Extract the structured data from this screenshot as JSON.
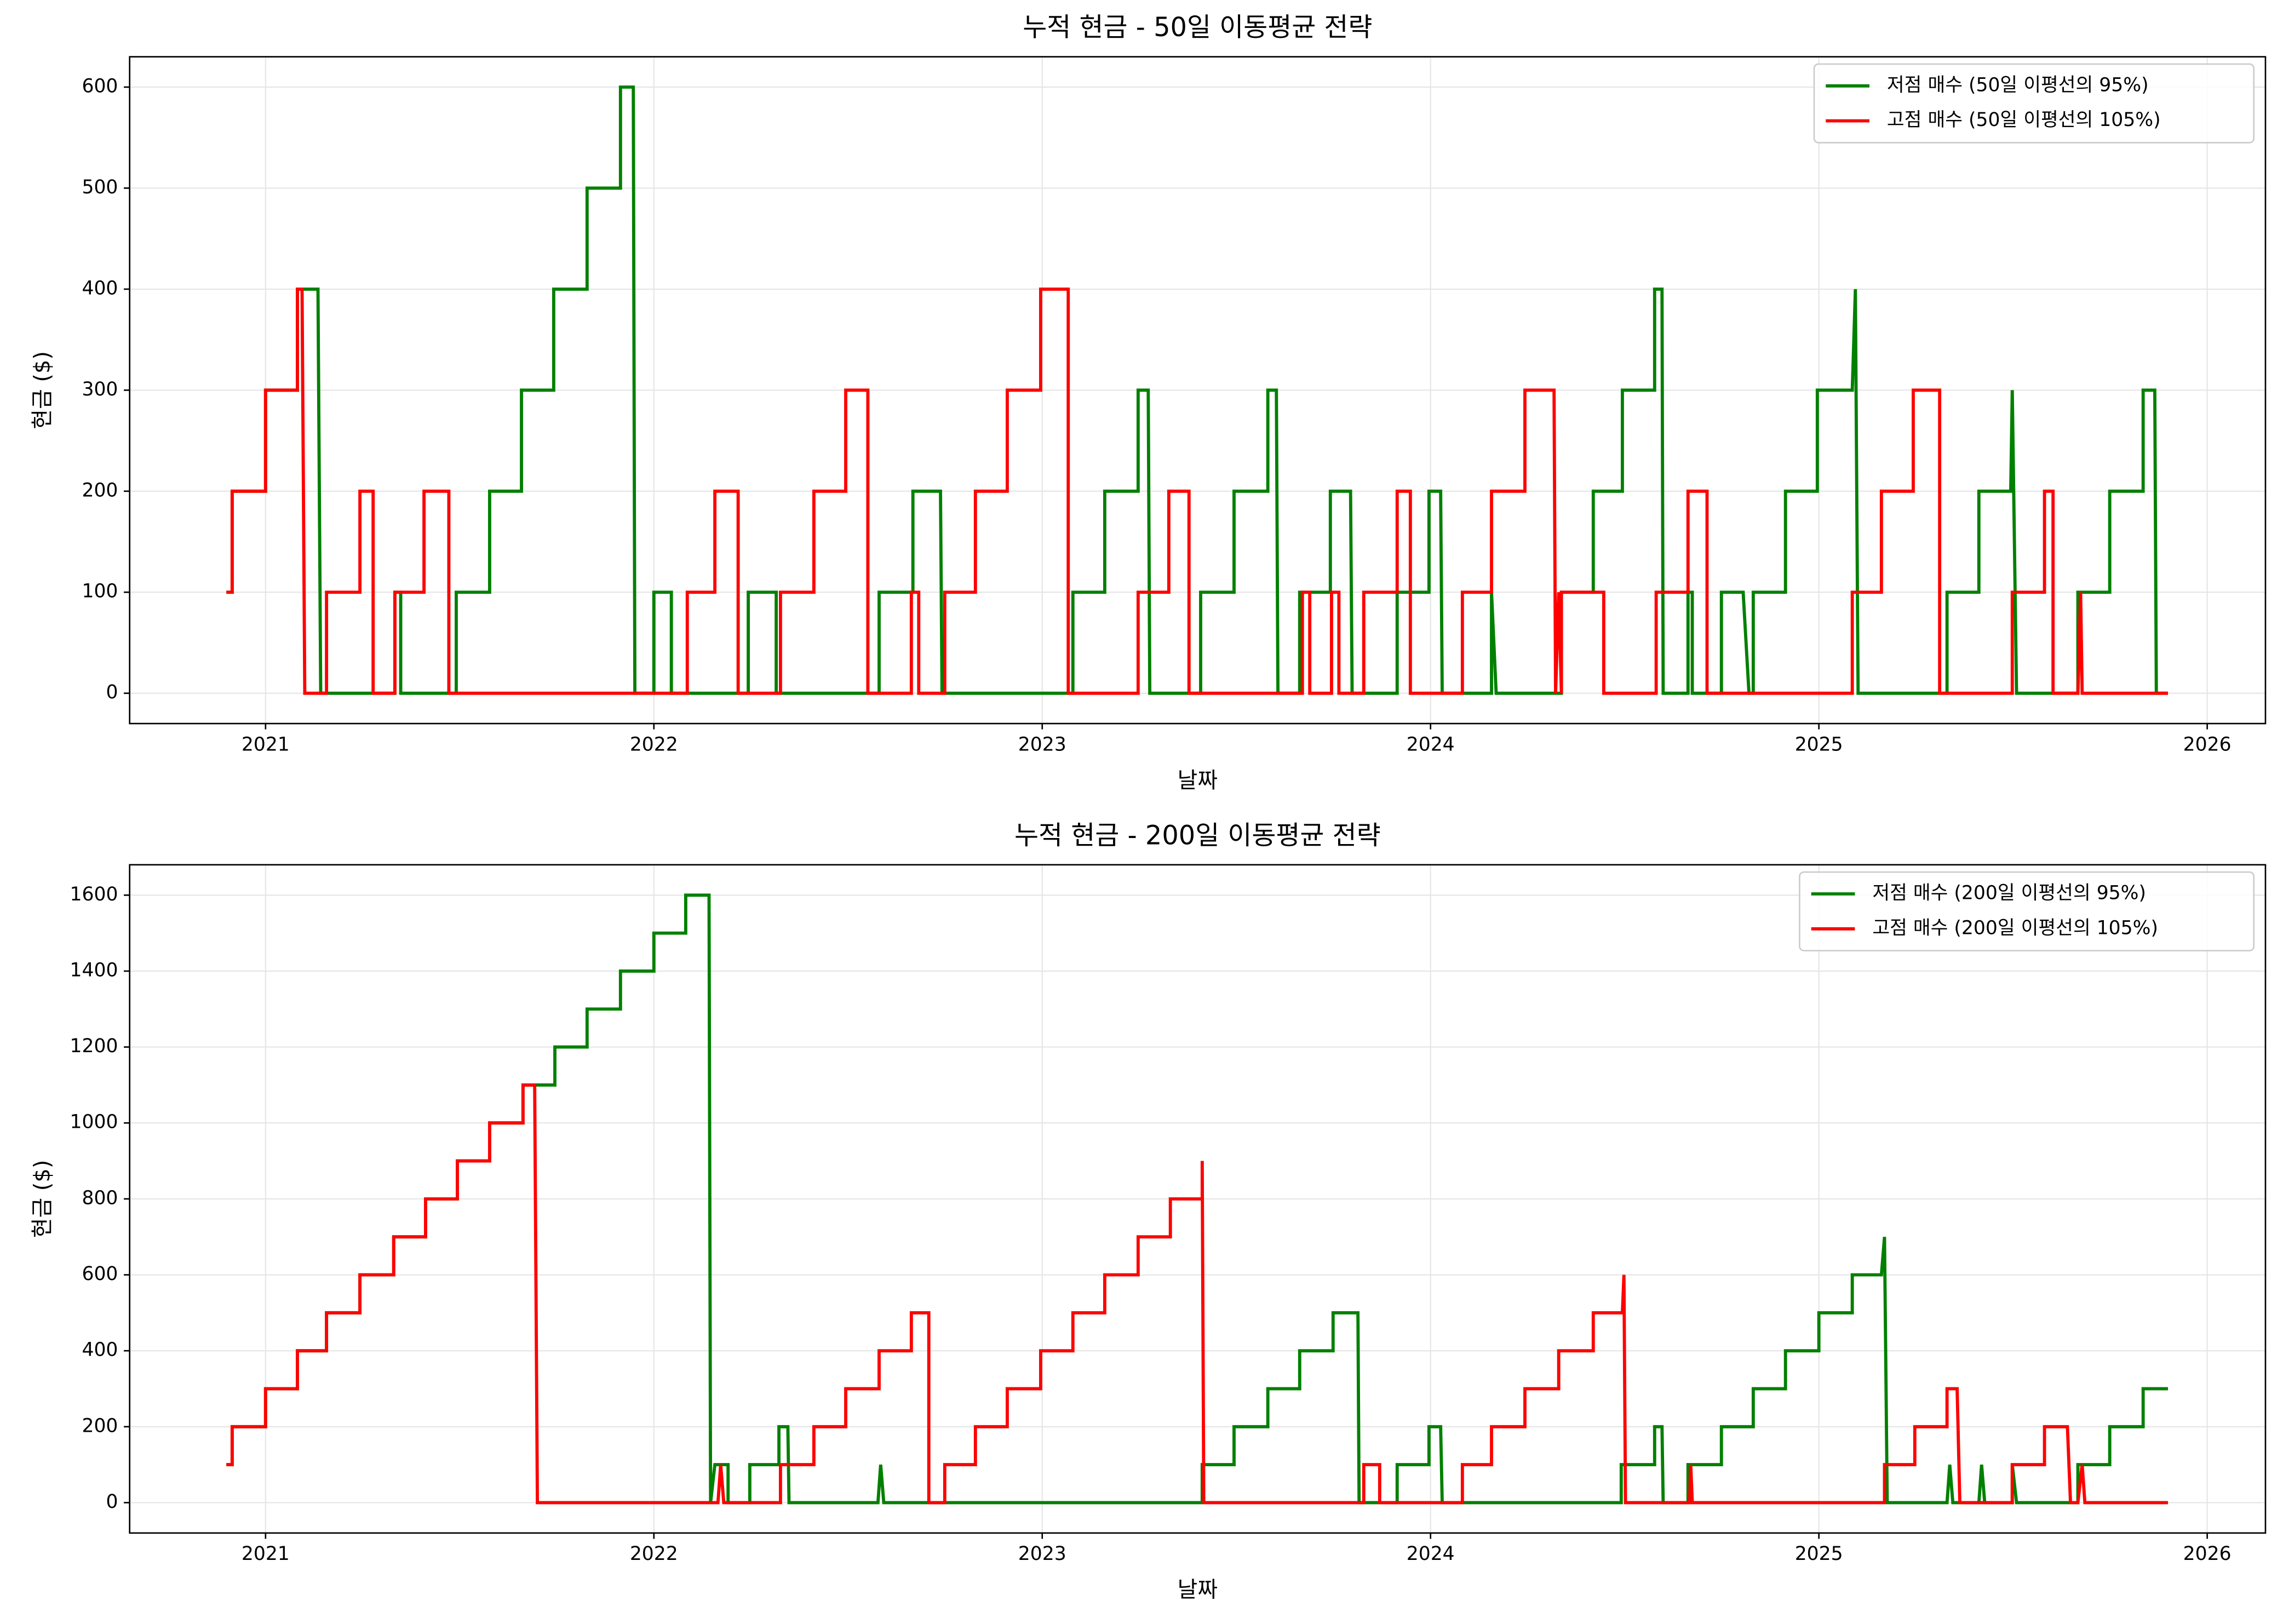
{
  "chart_data": [
    {
      "type": "line",
      "title": "누적 현금 - 50일 이동평균 전략",
      "x_label": "날짜",
      "y_label": "현금 ($)",
      "xlim": [
        2020.65,
        2026.15
      ],
      "ylim": [
        -30,
        630
      ],
      "xticks": [
        2021,
        2022,
        2023,
        2024,
        2025,
        2026
      ],
      "yticks": [
        0,
        100,
        200,
        300,
        400,
        500,
        600
      ],
      "grid": true,
      "legend": "upper right",
      "series": [
        {
          "name": "저점 매수 (50일 이평선의 95%)",
          "color": "#008000",
          "x": [
            2020.899,
            2020.914,
            2020.914,
            2021.0,
            2021.0,
            2021.082,
            2021.082,
            2021.135,
            2021.142,
            2021.333,
            2021.333,
            2021.348,
            2021.348,
            2021.491,
            2021.491,
            2021.577,
            2021.577,
            2021.659,
            2021.659,
            2021.742,
            2021.742,
            2021.828,
            2021.828,
            2021.914,
            2021.914,
            2021.947,
            2021.951,
            2022.0,
            2022.0,
            2022.045,
            2022.045,
            2022.243,
            2022.243,
            2022.315,
            2022.315,
            2022.58,
            2022.58,
            2022.667,
            2022.667,
            2022.738,
            2022.742,
            2023.079,
            2023.079,
            2023.161,
            2023.161,
            2023.247,
            2023.247,
            2023.273,
            2023.277,
            2023.408,
            2023.408,
            2023.494,
            2023.494,
            2023.581,
            2023.581,
            2023.603,
            2023.607,
            2023.663,
            2023.663,
            2023.742,
            2023.742,
            2023.794,
            2023.798,
            2023.914,
            2023.914,
            2023.996,
            2023.996,
            2024.026,
            2024.03,
            2024.157,
            2024.157,
            2024.169,
            2024.337,
            2024.337,
            2024.419,
            2024.419,
            2024.494,
            2024.494,
            2024.577,
            2024.577,
            2024.596,
            2024.599,
            2024.663,
            2024.663,
            2024.674,
            2024.674,
            2024.749,
            2024.749,
            2024.805,
            2024.82,
            2024.831,
            2024.831,
            2024.914,
            2024.914,
            2024.996,
            2024.996,
            2025.086,
            2025.094,
            2025.101,
            2025.33,
            2025.33,
            2025.412,
            2025.412,
            2025.494,
            2025.498,
            2025.509,
            2025.667,
            2025.667,
            2025.749,
            2025.749,
            2025.835,
            2025.835,
            2025.865,
            2025.869,
            2025.899
          ],
          "values": [
            100,
            100,
            200,
            200,
            300,
            300,
            400,
            400,
            0,
            0,
            100,
            100,
            0,
            0,
            100,
            100,
            200,
            200,
            300,
            300,
            400,
            400,
            500,
            500,
            600,
            600,
            0,
            0,
            100,
            100,
            0,
            0,
            100,
            100,
            0,
            0,
            100,
            100,
            200,
            200,
            0,
            0,
            100,
            100,
            200,
            200,
            300,
            300,
            0,
            0,
            100,
            100,
            200,
            200,
            300,
            300,
            0,
            0,
            100,
            100,
            200,
            200,
            0,
            0,
            100,
            100,
            200,
            200,
            0,
            0,
            100,
            0,
            0,
            100,
            100,
            200,
            200,
            300,
            300,
            400,
            400,
            0,
            0,
            100,
            100,
            0,
            0,
            100,
            100,
            0,
            0,
            100,
            100,
            200,
            200,
            300,
            300,
            400,
            0,
            0,
            100,
            100,
            200,
            200,
            300,
            0,
            0,
            100,
            100,
            200,
            200,
            300,
            300,
            0,
            0
          ]
        },
        {
          "name": "고점 매수 (50일 이평선의 105%)",
          "color": "#ff0000",
          "x": [
            2020.899,
            2020.914,
            2020.914,
            2021.0,
            2021.0,
            2021.082,
            2021.082,
            2021.094,
            2021.101,
            2021.157,
            2021.157,
            2021.243,
            2021.243,
            2021.277,
            2021.277,
            2021.333,
            2021.333,
            2021.408,
            2021.408,
            2021.472,
            2021.472,
            2022.086,
            2022.086,
            2022.157,
            2022.157,
            2022.217,
            2022.217,
            2022.326,
            2022.326,
            2022.412,
            2022.412,
            2022.494,
            2022.494,
            2022.551,
            2022.551,
            2022.663,
            2022.663,
            2022.682,
            2022.682,
            2022.749,
            2022.749,
            2022.828,
            2022.828,
            2022.91,
            2022.91,
            2022.996,
            2022.996,
            2023.067,
            2023.067,
            2023.247,
            2023.247,
            2023.326,
            2023.326,
            2023.378,
            2023.378,
            2023.67,
            2023.67,
            2023.689,
            2023.689,
            2023.745,
            2023.745,
            2023.764,
            2023.764,
            2023.828,
            2023.828,
            2023.914,
            2023.914,
            2023.948,
            2023.948,
            2024.082,
            2024.082,
            2024.157,
            2024.157,
            2024.243,
            2024.243,
            2024.318,
            2024.322,
            2024.33,
            2024.337,
            2024.337,
            2024.446,
            2024.446,
            2024.581,
            2024.581,
            2024.663,
            2024.663,
            2024.712,
            2024.712,
            2025.086,
            2025.086,
            2025.161,
            2025.161,
            2025.243,
            2025.243,
            2025.311,
            2025.311,
            2025.498,
            2025.498,
            2025.581,
            2025.581,
            2025.603,
            2025.603,
            2025.667,
            2025.674,
            2025.678,
            2025.899
          ],
          "values": [
            100,
            100,
            200,
            200,
            300,
            300,
            400,
            400,
            0,
            0,
            100,
            100,
            200,
            200,
            0,
            0,
            100,
            100,
            200,
            200,
            0,
            0,
            100,
            100,
            200,
            200,
            0,
            0,
            100,
            100,
            200,
            200,
            300,
            300,
            0,
            0,
            100,
            100,
            0,
            0,
            100,
            100,
            200,
            200,
            300,
            300,
            400,
            400,
            0,
            0,
            100,
            100,
            200,
            200,
            0,
            0,
            100,
            100,
            0,
            0,
            100,
            100,
            0,
            0,
            100,
            100,
            200,
            200,
            0,
            0,
            100,
            100,
            200,
            200,
            300,
            300,
            0,
            100,
            0,
            100,
            100,
            0,
            0,
            100,
            100,
            200,
            200,
            0,
            0,
            100,
            100,
            200,
            200,
            300,
            300,
            0,
            0,
            100,
            100,
            200,
            200,
            0,
            0,
            100,
            0,
            0
          ]
        }
      ]
    },
    {
      "type": "line",
      "title": "누적 현금 - 200일 이동평균 전략",
      "x_label": "날짜",
      "y_label": "현금 ($)",
      "xlim": [
        2020.65,
        2026.15
      ],
      "ylim": [
        -80,
        1680
      ],
      "xticks": [
        2021,
        2022,
        2023,
        2024,
        2025,
        2026
      ],
      "yticks": [
        0,
        200,
        400,
        600,
        800,
        1000,
        1200,
        1400,
        1600
      ],
      "grid": true,
      "legend": "upper right",
      "series": [
        {
          "name": "저점 매수 (200일 이평선의 95%)",
          "color": "#008000",
          "x": [
            2020.899,
            2020.914,
            2020.914,
            2021.0,
            2021.0,
            2021.082,
            2021.082,
            2021.157,
            2021.157,
            2021.243,
            2021.243,
            2021.33,
            2021.33,
            2021.412,
            2021.412,
            2021.494,
            2021.494,
            2021.577,
            2021.577,
            2021.663,
            2021.663,
            2021.745,
            2021.745,
            2021.828,
            2021.828,
            2021.914,
            2021.914,
            2022.0,
            2022.0,
            2022.082,
            2022.082,
            2022.142,
            2022.146,
            2022.157,
            2022.191,
            2022.191,
            2022.247,
            2022.247,
            2022.322,
            2022.322,
            2022.345,
            2022.348,
            2022.577,
            2022.584,
            2022.592,
            2023.412,
            2023.412,
            2023.494,
            2023.494,
            2023.581,
            2023.581,
            2023.663,
            2023.663,
            2023.749,
            2023.749,
            2023.813,
            2023.816,
            2023.914,
            2023.914,
            2023.996,
            2023.996,
            2024.026,
            2024.03,
            2024.491,
            2024.491,
            2024.577,
            2024.577,
            2024.596,
            2024.599,
            2024.663,
            2024.663,
            2024.749,
            2024.749,
            2024.831,
            2024.831,
            2024.914,
            2024.914,
            2025.0,
            2025.0,
            2025.086,
            2025.086,
            2025.161,
            2025.169,
            2025.176,
            2025.33,
            2025.337,
            2025.345,
            2025.412,
            2025.419,
            2025.427,
            2025.498,
            2025.498,
            2025.509,
            2025.667,
            2025.667,
            2025.749,
            2025.749,
            2025.835,
            2025.835,
            2025.899
          ],
          "values": [
            100,
            100,
            200,
            200,
            300,
            300,
            400,
            400,
            500,
            500,
            600,
            600,
            700,
            700,
            800,
            800,
            900,
            900,
            1000,
            1000,
            1100,
            1100,
            1200,
            1200,
            1300,
            1300,
            1400,
            1400,
            1500,
            1500,
            1600,
            1600,
            0,
            100,
            100,
            0,
            0,
            100,
            100,
            200,
            200,
            0,
            0,
            100,
            0,
            0,
            100,
            100,
            200,
            200,
            300,
            300,
            400,
            400,
            500,
            500,
            0,
            0,
            100,
            100,
            200,
            200,
            0,
            0,
            100,
            100,
            200,
            200,
            0,
            0,
            100,
            100,
            200,
            200,
            300,
            300,
            400,
            400,
            500,
            500,
            600,
            600,
            700,
            0,
            0,
            100,
            0,
            0,
            100,
            0,
            0,
            100,
            0,
            0,
            100,
            100,
            200,
            200,
            300,
            300
          ]
        },
        {
          "name": "고점 매수 (200일 이평선의 105%)",
          "color": "#ff0000",
          "x": [
            2020.899,
            2020.914,
            2020.914,
            2021.0,
            2021.0,
            2021.082,
            2021.082,
            2021.157,
            2021.157,
            2021.243,
            2021.243,
            2021.33,
            2021.33,
            2021.412,
            2021.412,
            2021.494,
            2021.494,
            2021.577,
            2021.577,
            2021.663,
            2021.663,
            2021.693,
            2021.7,
            2022.165,
            2022.172,
            2022.18,
            2022.326,
            2022.326,
            2022.412,
            2022.412,
            2022.494,
            2022.494,
            2022.58,
            2022.58,
            2022.663,
            2022.663,
            2022.708,
            2022.708,
            2022.749,
            2022.749,
            2022.828,
            2022.828,
            2022.91,
            2022.91,
            2022.996,
            2022.996,
            2023.079,
            2023.079,
            2023.161,
            2023.161,
            2023.247,
            2023.247,
            2023.33,
            2023.33,
            2023.412,
            2023.412,
            2023.416,
            2023.828,
            2023.828,
            2023.869,
            2023.869,
            2024.082,
            2024.082,
            2024.157,
            2024.157,
            2024.243,
            2024.243,
            2024.33,
            2024.33,
            2024.419,
            2024.419,
            2024.494,
            2024.498,
            2024.502,
            2024.667,
            2024.67,
            2024.674,
            2025.169,
            2025.169,
            2025.247,
            2025.247,
            2025.33,
            2025.33,
            2025.356,
            2025.363,
            2025.498,
            2025.498,
            2025.581,
            2025.581,
            2025.64,
            2025.648,
            2025.667,
            2025.678,
            2025.685,
            2025.899
          ],
          "values": [
            100,
            100,
            200,
            200,
            300,
            300,
            400,
            400,
            500,
            500,
            600,
            600,
            700,
            700,
            800,
            800,
            900,
            900,
            1000,
            1000,
            1100,
            1100,
            0,
            0,
            100,
            0,
            0,
            100,
            100,
            200,
            200,
            300,
            300,
            400,
            400,
            500,
            500,
            0,
            0,
            100,
            100,
            200,
            200,
            300,
            300,
            400,
            400,
            500,
            500,
            600,
            600,
            700,
            700,
            800,
            800,
            900,
            0,
            0,
            100,
            100,
            0,
            0,
            100,
            100,
            200,
            200,
            300,
            300,
            400,
            400,
            500,
            500,
            600,
            0,
            0,
            100,
            0,
            0,
            100,
            100,
            200,
            200,
            300,
            300,
            0,
            0,
            100,
            100,
            200,
            200,
            0,
            0,
            100,
            0,
            0
          ]
        }
      ]
    }
  ]
}
